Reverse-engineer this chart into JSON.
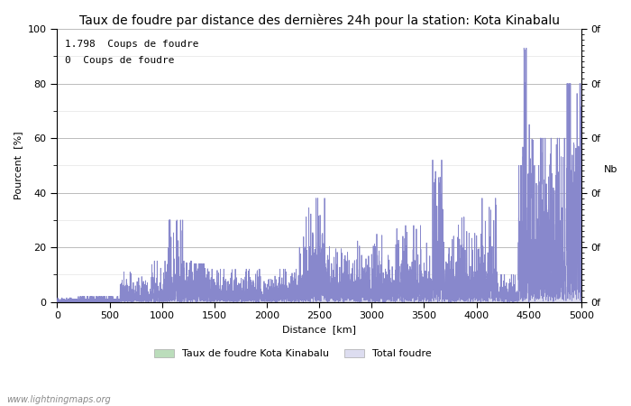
{
  "title": "Taux de foudre par distance des dernières 24h pour la station: Kota Kinabalu",
  "xlabel": "Distance  [km]",
  "ylabel_left": "Pourcent  [%]",
  "ylabel_right": "Nb",
  "annotation_line1": "1.798  Coups de foudre",
  "annotation_line2": "0  Coups de foudre",
  "xlim": [
    0,
    5000
  ],
  "ylim": [
    0,
    100
  ],
  "xticks": [
    0,
    500,
    1000,
    1500,
    2000,
    2500,
    3000,
    3500,
    4000,
    4500,
    5000
  ],
  "yticks_left": [
    0,
    20,
    40,
    60,
    80,
    100
  ],
  "background_color": "#ffffff",
  "plot_bg_color": "#ffffff",
  "grid_color": "#bbbbbb",
  "line_color": "#8888cc",
  "fill_total_color": "#ddddf0",
  "fill_local_color": "#bbddbb",
  "legend_label_local": "Taux de foudre Kota Kinabalu",
  "legend_label_total": "Total foudre",
  "watermark": "www.lightningmaps.org",
  "title_fontsize": 10,
  "axis_fontsize": 8,
  "tick_fontsize": 8,
  "figsize": [
    7.0,
    4.5
  ],
  "dpi": 100
}
